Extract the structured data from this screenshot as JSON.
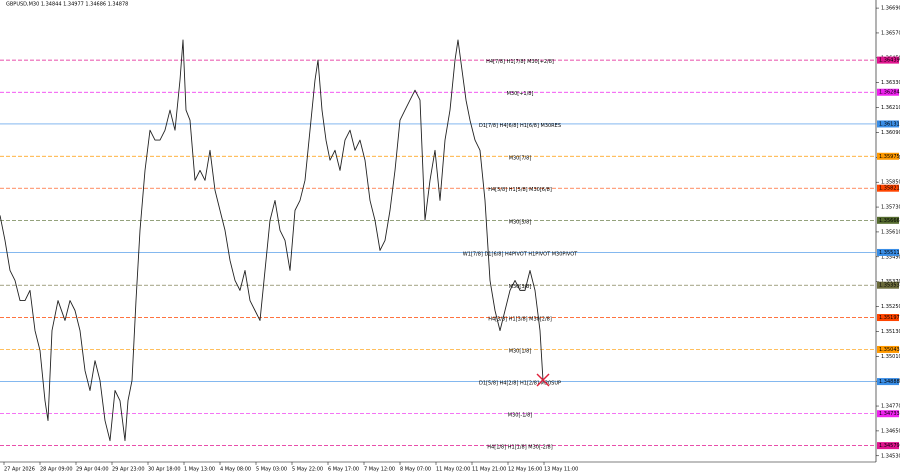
{
  "chart_data": {
    "type": "line",
    "title": "GBPUSD,M30  1.34844 1.34977 1.34686 1.34878",
    "xlim": [
      0,
      876
    ],
    "ylim": [
      1.345,
      1.36729
    ],
    "xticks": [
      {
        "value": 4,
        "label": "27 Apr 2026"
      },
      {
        "value": 40,
        "label": "28 Apr 09:00"
      },
      {
        "value": 76,
        "label": "29 Apr 04:00"
      },
      {
        "value": 112,
        "label": "29 Apr 23:00"
      },
      {
        "value": 148,
        "label": "30 Apr 18:00"
      },
      {
        "value": 184,
        "label": "1 May 13:00"
      },
      {
        "value": 220,
        "label": "4 May 08:00"
      },
      {
        "value": 256,
        "label": "5 May 03:00"
      },
      {
        "value": 292,
        "label": "5 May 22:00"
      },
      {
        "value": 328,
        "label": "6 May 17:00"
      },
      {
        "value": 364,
        "label": "7 May 12:00"
      },
      {
        "value": 400,
        "label": "8 May 07:00"
      },
      {
        "value": 436,
        "label": "11 May 02:00"
      },
      {
        "value": 472,
        "label": "11 May 21:00"
      },
      {
        "value": 508,
        "label": "12 May 16:00"
      },
      {
        "value": 544,
        "label": "13 May 11:00"
      }
    ],
    "yticks": [
      {
        "value": 1.3669,
        "label": "1.36690"
      },
      {
        "value": 1.3657,
        "label": "1.36570"
      },
      {
        "value": 1.3645,
        "label": "1.36450"
      },
      {
        "value": 1.3633,
        "label": "1.36330"
      },
      {
        "value": 1.3621,
        "label": "1.36210"
      },
      {
        "value": 1.3609,
        "label": "1.36090"
      },
      {
        "value": 1.3597,
        "label": "1.35970"
      },
      {
        "value": 1.3585,
        "label": "1.35850"
      },
      {
        "value": 1.3573,
        "label": "1.35730"
      },
      {
        "value": 1.3561,
        "label": "1.35610"
      },
      {
        "value": 1.3549,
        "label": "1.35490"
      },
      {
        "value": 1.3537,
        "label": "1.35370"
      },
      {
        "value": 1.3525,
        "label": "1.35250"
      },
      {
        "value": 1.3513,
        "label": "1.35130"
      },
      {
        "value": 1.3501,
        "label": "1.35010"
      },
      {
        "value": 1.3489,
        "label": "1.34890"
      },
      {
        "value": 1.3477,
        "label": "1.34770"
      },
      {
        "value": 1.3465,
        "label": "1.34650"
      },
      {
        "value": 1.3453,
        "label": "1.34530"
      }
    ],
    "series": [
      {
        "color": "#222222",
        "x": [
          0,
          5,
          10,
          15,
          20,
          25,
          30,
          35,
          40,
          45,
          48,
          52,
          58,
          65,
          70,
          75,
          80,
          85,
          90,
          95,
          100,
          105,
          110,
          115,
          120,
          125,
          128,
          132,
          136,
          140,
          145,
          150,
          155,
          160,
          165,
          170,
          175,
          180,
          183,
          186,
          190,
          195,
          200,
          205,
          210,
          215,
          220,
          225,
          230,
          235,
          240,
          245,
          250,
          255,
          260,
          265,
          270,
          275,
          280,
          285,
          290,
          295,
          300,
          305,
          310,
          315,
          318,
          322,
          326,
          330,
          335,
          340,
          345,
          350,
          355,
          360,
          365,
          370,
          375,
          380,
          385,
          390,
          395,
          400,
          405,
          410,
          415,
          420,
          425,
          430,
          435,
          440,
          445,
          450,
          455,
          458,
          462,
          466,
          470,
          475,
          480,
          485,
          490,
          495,
          500,
          505,
          510,
          515,
          520,
          525,
          530,
          535,
          540,
          543
        ],
        "values": [
          1.3569,
          1.35569,
          1.35424,
          1.35376,
          1.35279,
          1.35279,
          1.35328,
          1.35134,
          1.35038,
          1.34796,
          1.347,
          1.35134,
          1.35279,
          1.35183,
          1.35279,
          1.35231,
          1.35134,
          1.34941,
          1.34845,
          1.34989,
          1.34893,
          1.347,
          1.34603,
          1.34845,
          1.34796,
          1.34603,
          1.34796,
          1.34893,
          1.35279,
          1.35618,
          1.35907,
          1.36101,
          1.36053,
          1.36053,
          1.36101,
          1.36198,
          1.36101,
          1.36343,
          1.36536,
          1.36198,
          1.36149,
          1.35859,
          1.35907,
          1.35859,
          1.36004,
          1.35811,
          1.35714,
          1.35618,
          1.35473,
          1.35376,
          1.35328,
          1.35424,
          1.35279,
          1.35231,
          1.35183,
          1.35424,
          1.35666,
          1.35762,
          1.35618,
          1.35569,
          1.35424,
          1.35714,
          1.35762,
          1.35859,
          1.36101,
          1.36343,
          1.36439,
          1.36198,
          1.36053,
          1.35956,
          1.36004,
          1.35907,
          1.36053,
          1.36101,
          1.36004,
          1.36053,
          1.35956,
          1.35762,
          1.35666,
          1.35521,
          1.35569,
          1.35714,
          1.35907,
          1.36149,
          1.36198,
          1.36246,
          1.36294,
          1.36246,
          1.35666,
          1.35859,
          1.36004,
          1.35762,
          1.36053,
          1.36198,
          1.36439,
          1.36536,
          1.36391,
          1.36246,
          1.36149,
          1.36053,
          1.36004,
          1.35762,
          1.35376,
          1.35231,
          1.35134,
          1.35231,
          1.35328,
          1.35376,
          1.35328,
          1.35328,
          1.35424,
          1.35328,
          1.35134,
          1.34893
        ]
      }
    ],
    "levels": [
      {
        "label": "H4[7/8] H1[7/8] M30[+2/8]",
        "value": 1.36439,
        "color": "#e0158f",
        "dashed": true
      },
      {
        "label": "M30[+1/8]",
        "value": 1.36284,
        "color": "#ee22ee",
        "dashed": true
      },
      {
        "label": "D1[7/8] H4[6/8] H1[6/8] M30RES",
        "value": 1.36131,
        "color": "#3a8ee6",
        "dashed": false
      },
      {
        "label": "M30[7/8]",
        "value": 1.35975,
        "color": "#ff9900",
        "dashed": true
      },
      {
        "label": "H4[5/8] H1[5/8] M30[6/8]",
        "value": 1.35821,
        "color": "#ff4500",
        "dashed": true
      },
      {
        "label": "M30[5/8]",
        "value": 1.35666,
        "color": "#556b2f",
        "dashed": true
      },
      {
        "label": "W1[7/8] D1[6/8] H4PIVOT H1PIVOT M30PIVOT",
        "value": 1.35511,
        "color": "#3a8ee6",
        "dashed": false
      },
      {
        "label": "M30[3/8]",
        "value": 1.35353,
        "color": "#6b6b3a",
        "dashed": true
      },
      {
        "label": "H4[3/8] H1[3/8] M30[2/8]",
        "value": 1.35197,
        "color": "#ff4500",
        "dashed": true
      },
      {
        "label": "M30[1/8]",
        "value": 1.35043,
        "color": "#ff9900",
        "dashed": true
      },
      {
        "label": "D1[5/8] H4[2/8] H1[2/8] M30SUP",
        "value": 1.34888,
        "color": "#3a8ee6",
        "dashed": false
      },
      {
        "label": "M30[-1/8]",
        "value": 1.34733,
        "color": "#ee22ee",
        "dashed": true
      },
      {
        "label": "H4[1/8] H1[1/8] M30[-2/8]",
        "value": 1.34579,
        "color": "#e0158f",
        "dashed": true
      }
    ]
  }
}
